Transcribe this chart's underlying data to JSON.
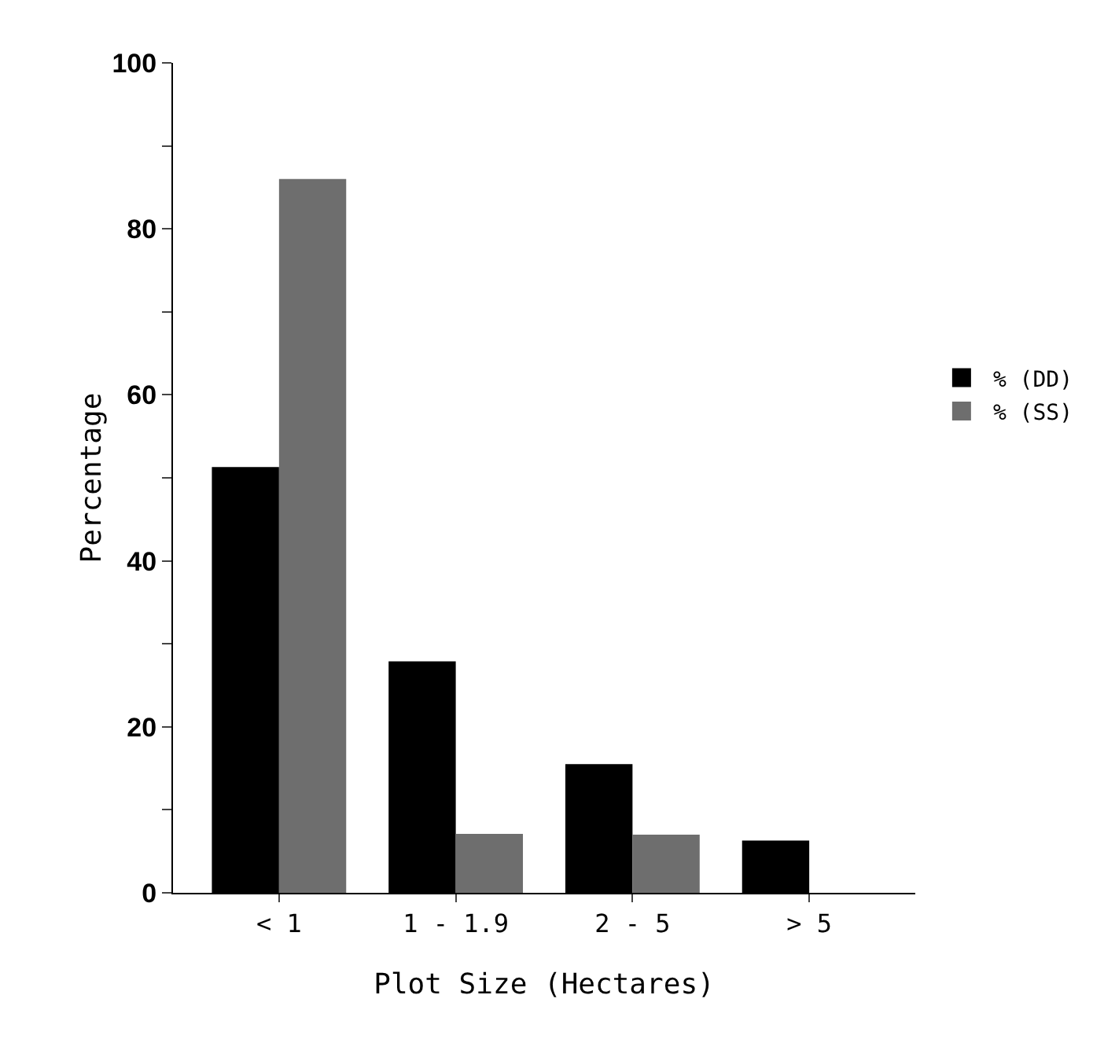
{
  "chart_data": {
    "type": "bar",
    "xlabel": "Plot Size (Hectares)",
    "ylabel": "Percentage",
    "categories": [
      "< 1",
      "1 - 1.9",
      "2 - 5",
      "> 5"
    ],
    "series": [
      {
        "name": "% (DD)",
        "color": "#000000",
        "values": [
          51.3,
          27.9,
          15.5,
          6.3
        ]
      },
      {
        "name": "% (SS)",
        "color": "#6e6e6e",
        "values": [
          86,
          7.1,
          7,
          null
        ]
      }
    ],
    "ylim": [
      0,
      100
    ],
    "yticks": [
      0,
      {
        "value": 10,
        "label": null
      },
      20,
      {
        "value": 30,
        "label": null
      },
      40,
      {
        "value": 50,
        "label": null
      },
      60,
      {
        "value": 70,
        "label": null
      },
      80,
      {
        "value": 90,
        "label": null
      },
      100
    ],
    "grid": false,
    "legend": "right"
  }
}
